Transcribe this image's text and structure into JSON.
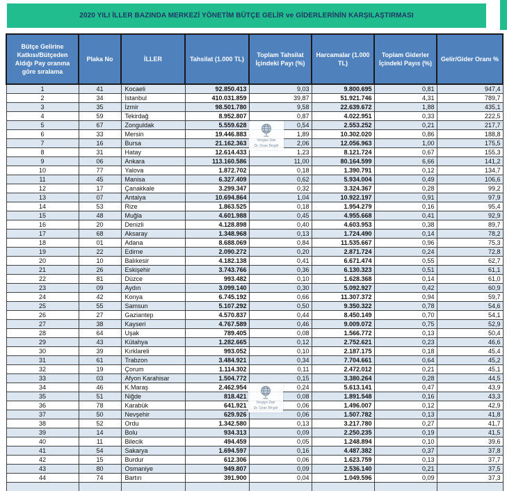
{
  "title": "2020 YILI İLLER BAZINDA MERKEZİ YÖNETİM BÜTÇE GELİR ve GİDERLERİNİN KARŞILAŞTIRMASI",
  "colors": {
    "title_bar_green": "#21bd8e",
    "header_blue": "#4f81bd",
    "stripe_blue": "#dce6f1",
    "title_text_navy": "#1f3864"
  },
  "watermark": {
    "icon": "globe-icon",
    "line1": "Vergiye Dair",
    "line2": "Dr. Ozan Bingöl"
  },
  "table": {
    "headers": [
      "Bütçe Gelirine Katkısı/Bütçeden Aldığı Pay oranına göre sıralama",
      "Plaka No",
      "İLLER",
      "Tahsilat (1.000 TL)",
      "Toplam Tahsilat İçindeki Payı (%)",
      "Harcamalar (1.000 TL)",
      "Toplam Giderler İçindeki Payıs (%)",
      "Gelir/Gider Oranı %"
    ],
    "rows": [
      [
        "1",
        "41",
        "Kocaeli",
        "92.850.413",
        "9,03",
        "9.800.695",
        "0,81",
        "947,4"
      ],
      [
        "2",
        "34",
        "İstanbul",
        "410.031.859",
        "39,87",
        "51.921.746",
        "4,31",
        "789,7"
      ],
      [
        "3",
        "35",
        "İzmir",
        "98.501.780",
        "9,58",
        "22.639.672",
        "1,88",
        "435,1"
      ],
      [
        "4",
        "59",
        "Tekirdağ",
        "8.952.807",
        "0,87",
        "4.022.951",
        "0,33",
        "222,5"
      ],
      [
        "5",
        "67",
        "Zonguldak",
        "5.559.628",
        "0,54",
        "2.553.252",
        "0,21",
        "217,7"
      ],
      [
        "6",
        "33",
        "Mersin",
        "19.446.883",
        "1,89",
        "10.302.020",
        "0,86",
        "188,8"
      ],
      [
        "7",
        "16",
        "Bursa",
        "21.162.363",
        "2,06",
        "12.056.963",
        "1,00",
        "175,5"
      ],
      [
        "8",
        "31",
        "Hatay",
        "12.614.433",
        "1,23",
        "8.121.724",
        "0,67",
        "155,3"
      ],
      [
        "9",
        "06",
        "Ankara",
        "113.160.586",
        "11,00",
        "80.164.599",
        "6,66",
        "141,2"
      ],
      [
        "10",
        "77",
        "Yalova",
        "1.872.702",
        "0,18",
        "1.390.791",
        "0,12",
        "134,7"
      ],
      [
        "11",
        "45",
        "Manisa",
        "6.327.409",
        "0,62",
        "5.934.004",
        "0,49",
        "106,6"
      ],
      [
        "12",
        "17",
        "Çanakkale",
        "3.299.347",
        "0,32",
        "3.324.367",
        "0,28",
        "99,2"
      ],
      [
        "13",
        "07",
        "Antalya",
        "10.694.864",
        "1,04",
        "10.922.197",
        "0,91",
        "97,9"
      ],
      [
        "14",
        "53",
        "Rize",
        "1.863.525",
        "0,18",
        "1.954.279",
        "0,16",
        "95,4"
      ],
      [
        "15",
        "48",
        "Muğla",
        "4.601.988",
        "0,45",
        "4.955.668",
        "0,41",
        "92,9"
      ],
      [
        "16",
        "20",
        "Denizli",
        "4.128.898",
        "0,40",
        "4.603.953",
        "0,38",
        "89,7"
      ],
      [
        "17",
        "68",
        "Aksaray",
        "1.348.968",
        "0,13",
        "1.724.490",
        "0,14",
        "78,2"
      ],
      [
        "18",
        "01",
        "Adana",
        "8.688.069",
        "0,84",
        "11.535.667",
        "0,96",
        "75,3"
      ],
      [
        "19",
        "22",
        "Edirne",
        "2.090.272",
        "0,20",
        "2.871.724",
        "0,24",
        "72,8"
      ],
      [
        "20",
        "10",
        "Balıkesir",
        "4.182.138",
        "0,41",
        "6.671.474",
        "0,55",
        "62,7"
      ],
      [
        "21",
        "26",
        "Eskişehir",
        "3.743.766",
        "0,36",
        "6.130.323",
        "0,51",
        "61,1"
      ],
      [
        "22",
        "81",
        "Düzce",
        "993.482",
        "0,10",
        "1.628.368",
        "0,14",
        "61,0"
      ],
      [
        "23",
        "09",
        "Aydın",
        "3.099.140",
        "0,30",
        "5.092.927",
        "0,42",
        "60,9"
      ],
      [
        "24",
        "42",
        "Konya",
        "6.745.192",
        "0,66",
        "11.307.372",
        "0,94",
        "59,7"
      ],
      [
        "25",
        "55",
        "Samsun",
        "5.107.292",
        "0,50",
        "9.350.322",
        "0,78",
        "54,6"
      ],
      [
        "26",
        "27",
        "Gaziantep",
        "4.570.837",
        "0,44",
        "8.450.149",
        "0,70",
        "54,1"
      ],
      [
        "27",
        "38",
        "Kayseri",
        "4.767.589",
        "0,46",
        "9.009.072",
        "0,75",
        "52,9"
      ],
      [
        "28",
        "64",
        "Uşak",
        "789.405",
        "0,08",
        "1.566.772",
        "0,13",
        "50,4"
      ],
      [
        "29",
        "43",
        "Kütahya",
        "1.282.665",
        "0,12",
        "2.752.621",
        "0,23",
        "46,6"
      ],
      [
        "30",
        "39",
        "Kırklareli",
        "993.052",
        "0,10",
        "2.187.175",
        "0,18",
        "45,4"
      ],
      [
        "31",
        "61",
        "Trabzon",
        "3.484.921",
        "0,34",
        "7.704.661",
        "0,64",
        "45,2"
      ],
      [
        "32",
        "19",
        "Çorum",
        "1.114.302",
        "0,11",
        "2.472.012",
        "0,21",
        "45,1"
      ],
      [
        "33",
        "03",
        "Afyon Karahisar",
        "1.504.772",
        "0,15",
        "3.380.264",
        "0,28",
        "44,5"
      ],
      [
        "34",
        "46",
        "K.Maraş",
        "2.462.954",
        "0,24",
        "5.613.141",
        "0,47",
        "43,9"
      ],
      [
        "35",
        "51",
        "Niğde",
        "818.421",
        "0,08",
        "1.891.548",
        "0,16",
        "43,3"
      ],
      [
        "36",
        "78",
        "Karabük",
        "641.921",
        "0,06",
        "1.496.007",
        "0,12",
        "42,9"
      ],
      [
        "37",
        "50",
        "Nevşehir",
        "629.926",
        "0,06",
        "1.507.782",
        "0,13",
        "41,8"
      ],
      [
        "38",
        "52",
        "Ordu",
        "1.342.580",
        "0,13",
        "3.217.780",
        "0,27",
        "41,7"
      ],
      [
        "39",
        "14",
        "Bolu",
        "934.313",
        "0,09",
        "2.250.235",
        "0,19",
        "41,5"
      ],
      [
        "40",
        "11",
        "Bilecik",
        "494.459",
        "0,05",
        "1.248.894",
        "0,10",
        "39,6"
      ],
      [
        "41",
        "54",
        "Sakarya",
        "1.694.597",
        "0,16",
        "4.487.382",
        "0,37",
        "37,8"
      ],
      [
        "42",
        "15",
        "Burdur",
        "612.306",
        "0,06",
        "1.623.759",
        "0,13",
        "37,7"
      ],
      [
        "43",
        "80",
        "Osmaniye",
        "949.807",
        "0,09",
        "2.536.140",
        "0,21",
        "37,5"
      ],
      [
        "44",
        "74",
        "Bartın",
        "391.900",
        "0,04",
        "1.049.596",
        "0,09",
        "37,3"
      ]
    ]
  }
}
